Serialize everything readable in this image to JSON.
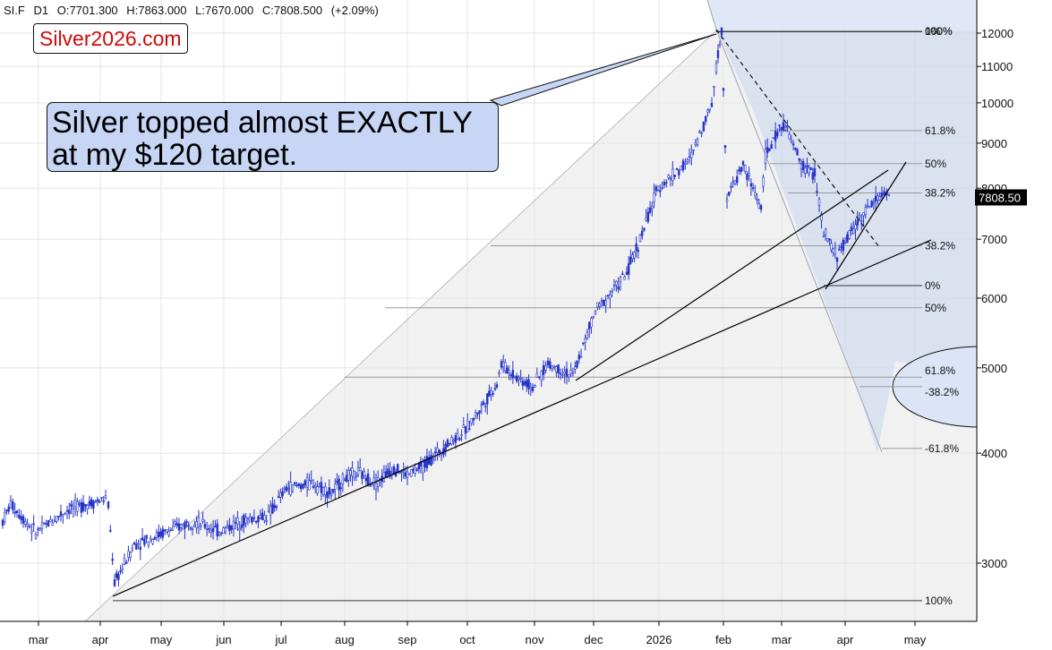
{
  "header": {
    "symbol": "SI.F",
    "timeframe": "D1",
    "open": "O:7701.300",
    "high": "H:7863.000",
    "low": "L:7670.000",
    "close": "C:7808.500",
    "change": "(+2.09%)"
  },
  "brand_label": "Silver2026.com",
  "annotation": {
    "line1": "Silver topped almost EXACTLY",
    "line2": "at my $120 target."
  },
  "price_tag": "7808.50",
  "colors": {
    "candles": "#2433c9",
    "brand_text": "#d10a0a",
    "callout_fill": "#c7d6f5",
    "price_tag_bg": "#000000",
    "fan_fill_gray": "#e6e6e6",
    "fan_fill_blue": "#c9d5ec"
  },
  "chart_data": {
    "type": "candlestick",
    "yscale": "log",
    "ylim": [
      2600,
      12800
    ],
    "x_ticks": [
      "mar",
      "apr",
      "may",
      "jun",
      "jul",
      "aug",
      "sep",
      "oct",
      "nov",
      "dec",
      "2026",
      "feb",
      "mar",
      "apr",
      "may"
    ],
    "y_ticks": [
      3000,
      4000,
      5000,
      6000,
      7000,
      8000,
      9000,
      10000,
      11000,
      12000
    ],
    "last_price": 7808.5,
    "grid": true,
    "fib_levels": [
      {
        "label": "100%",
        "value": 12050
      },
      {
        "label": "0%",
        "value": 12050
      },
      {
        "label": "100%",
        "value": 12050
      },
      {
        "label": "61.8%",
        "value": 9300
      },
      {
        "label": "50%",
        "value": 8530
      },
      {
        "label": "38.2%",
        "value": 7900
      },
      {
        "label": "38.2%",
        "value": 6880
      },
      {
        "label": "0%",
        "value": 6200
      },
      {
        "label": "50%",
        "value": 5850
      },
      {
        "label": "61.8%",
        "value": 4880
      },
      {
        "label": "-38.2%",
        "value": 4760
      },
      {
        "label": "-61.8%",
        "value": 4050
      },
      {
        "label": "100%",
        "value": 2720
      }
    ],
    "price_path": [
      [
        "mar",
        3350
      ],
      [
        "mar",
        3500
      ],
      [
        "mar",
        3250
      ],
      [
        "mar",
        3450
      ],
      [
        "mar",
        3550
      ],
      [
        "apr",
        3480
      ],
      [
        "apr",
        2850
      ],
      [
        "apr",
        3150
      ],
      [
        "apr",
        3300
      ],
      [
        "may",
        3350
      ],
      [
        "may",
        3260
      ],
      [
        "may",
        3350
      ],
      [
        "jun",
        3400
      ],
      [
        "jun",
        3650
      ],
      [
        "jun",
        3700
      ],
      [
        "jul",
        3600
      ],
      [
        "jul",
        3750
      ],
      [
        "jul",
        3800
      ],
      [
        "aug",
        3700
      ],
      [
        "aug",
        3850
      ],
      [
        "aug",
        3780
      ],
      [
        "sep",
        3850
      ],
      [
        "sep",
        4100
      ],
      [
        "sep",
        4250
      ],
      [
        "oct",
        4550
      ],
      [
        "oct",
        4800
      ],
      [
        "oct",
        5050
      ],
      [
        "oct",
        4900
      ],
      [
        "nov",
        4750
      ],
      [
        "nov",
        5050
      ],
      [
        "nov",
        4900
      ],
      [
        "dec",
        5800
      ],
      [
        "dec",
        6400
      ],
      [
        "dec",
        7000
      ],
      [
        "2026",
        8000
      ],
      [
        "2026",
        8600
      ],
      [
        "2026",
        10000
      ],
      [
        "2026",
        11000
      ],
      [
        "feb",
        12050
      ],
      [
        "feb",
        7800
      ],
      [
        "feb",
        8500
      ],
      [
        "feb",
        7600
      ],
      [
        "mar",
        8700
      ],
      [
        "mar",
        9500
      ],
      [
        "mar",
        8500
      ],
      [
        "mar",
        8300
      ],
      [
        "apr",
        7100
      ],
      [
        "apr",
        6700
      ],
      [
        "apr",
        7400
      ],
      [
        "apr",
        7900
      ],
      [
        "apr",
        7808.5
      ]
    ]
  },
  "y_labels_text": [
    "12000",
    "11000",
    "10000",
    "9000",
    "8000",
    "7000",
    "6000",
    "5000",
    "4000",
    "3000"
  ]
}
